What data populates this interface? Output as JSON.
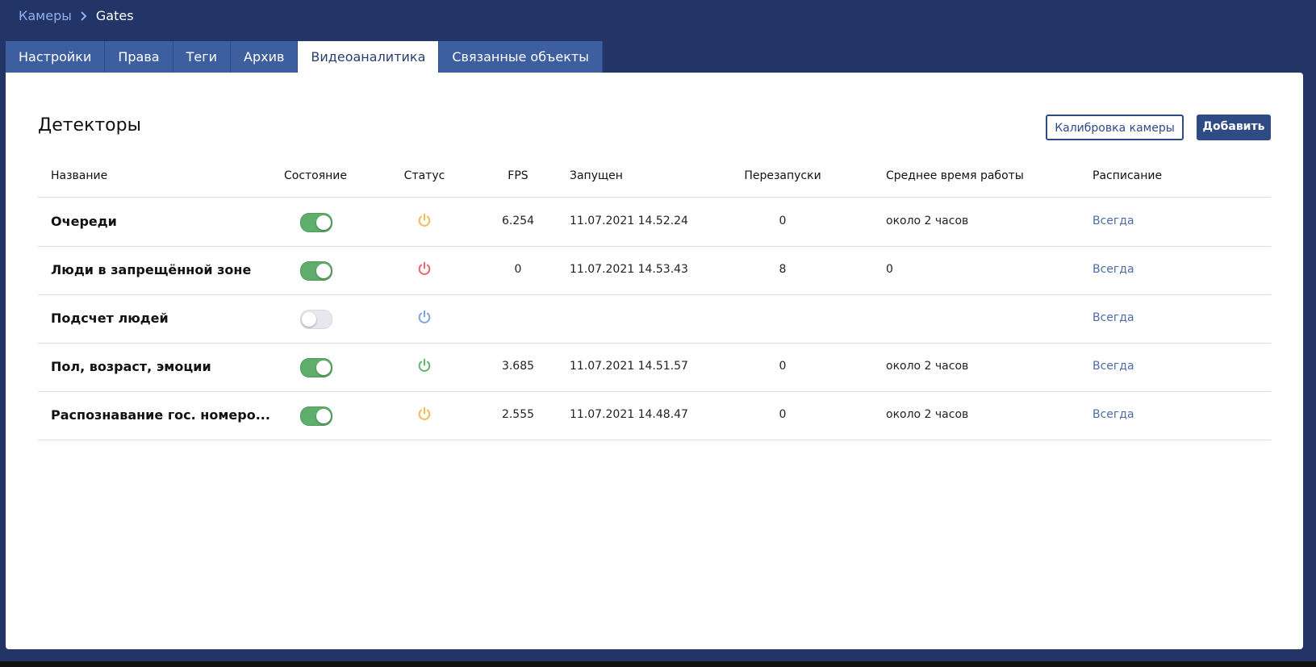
{
  "breadcrumb": {
    "parent": "Камеры",
    "current": "Gates"
  },
  "tabs": [
    {
      "label": "Настройки",
      "active": false
    },
    {
      "label": "Права",
      "active": false
    },
    {
      "label": "Теги",
      "active": false
    },
    {
      "label": "Архив",
      "active": false
    },
    {
      "label": "Видеоаналитика",
      "active": true
    },
    {
      "label": "Связанные объекты",
      "active": false
    }
  ],
  "section": {
    "title": "Детекторы",
    "buttons": [
      "Калибровка камеры",
      "Добавить"
    ]
  },
  "table": {
    "columns": [
      "Название",
      "Состояние",
      "Статус",
      "FPS",
      "Запущен",
      "Перезапуски",
      "Среднее время работы",
      "Расписание"
    ],
    "rows": [
      {
        "name": "Очереди",
        "enabled": true,
        "status_color": "#f5b95a",
        "fps": "6.254",
        "started": "11.07.2021 14.52.24",
        "restarts": "0",
        "uptime": "около 2 часов",
        "schedule": "Всегда"
      },
      {
        "name": "Люди в запрещённой зоне",
        "enabled": true,
        "status_color": "#e8636b",
        "fps": "0",
        "started": "11.07.2021 14.53.43",
        "restarts": "8",
        "uptime": "0",
        "schedule": "Всегда"
      },
      {
        "name": "Подсчет людей",
        "enabled": false,
        "status_color": "#7fa3e0",
        "fps": null,
        "started": null,
        "restarts": null,
        "uptime": null,
        "schedule": "Всегда"
      },
      {
        "name": "Пол, возраст, эмоции",
        "enabled": true,
        "status_color": "#5cb76a",
        "fps": "3.685",
        "started": "11.07.2021 14.51.57",
        "restarts": "0",
        "uptime": "около 2 часов",
        "schedule": "Всегда"
      },
      {
        "name": "Распознавание гос. номеро...",
        "enabled": true,
        "status_color": "#f5b95a",
        "fps": "2.555",
        "started": "11.07.2021 14.48.47",
        "restarts": "0",
        "uptime": "около 2 часов",
        "schedule": "Всегда"
      }
    ]
  }
}
